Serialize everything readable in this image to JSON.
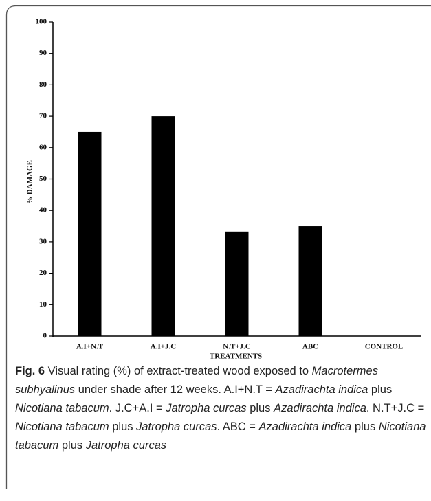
{
  "chart_data": {
    "type": "bar",
    "categories": [
      "A.I+N.T",
      "A.I+J.C",
      "N.T+J.C",
      "ABC",
      "CONTROL"
    ],
    "values": [
      65,
      70,
      33.3,
      35,
      0
    ],
    "color": "#000000",
    "xlabel": "TREATMENTS",
    "ylabel": "% DAMAGE",
    "ylim": [
      0,
      100
    ],
    "yticks": [
      0,
      10,
      20,
      30,
      40,
      50,
      60,
      70,
      80,
      90,
      100
    ],
    "grid": false
  },
  "caption": {
    "label": "Fig. 6",
    "segments": [
      {
        "text": " Visual rating (%) of extract-treated wood exposed to ",
        "italic": false
      },
      {
        "text": "Macrotermes subhyalinus",
        "italic": true
      },
      {
        "text": " under shade after 12 weeks. A.I+N.T = ",
        "italic": false
      },
      {
        "text": "Azadirachta indica",
        "italic": true
      },
      {
        "text": " plus ",
        "italic": false
      },
      {
        "text": "Nicotiana tabacum",
        "italic": true
      },
      {
        "text": ". J.C+A.I = ",
        "italic": false
      },
      {
        "text": "Jatropha curcas",
        "italic": true
      },
      {
        "text": " plus ",
        "italic": false
      },
      {
        "text": "Azadirachta indica",
        "italic": true
      },
      {
        "text": ". N.T+J.C = ",
        "italic": false
      },
      {
        "text": "Nicotiana tabacum",
        "italic": true
      },
      {
        "text": " plus ",
        "italic": false
      },
      {
        "text": "Jatropha curcas",
        "italic": true
      },
      {
        "text": ". ABC = ",
        "italic": false
      },
      {
        "text": "Azadirachta indica",
        "italic": true
      },
      {
        "text": " plus ",
        "italic": false
      },
      {
        "text": "Nicotiana tabacum",
        "italic": true
      },
      {
        "text": " plus ",
        "italic": false
      },
      {
        "text": "Jatropha curcas",
        "italic": true
      }
    ]
  }
}
